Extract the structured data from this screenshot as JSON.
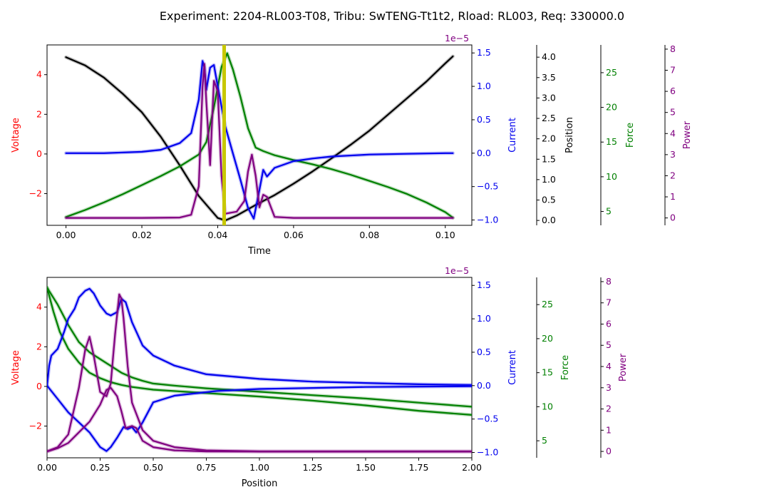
{
  "title": "Experiment: 2204-RL003-T08, Tribu: SwTENG-Tt1t2, Rload: RL003, Req: 330000.0",
  "colors": {
    "voltage": "#ff0000",
    "current": "#0000ee",
    "position": "#000000",
    "force": "#008000",
    "power": "#800080",
    "marker": "#c8c800"
  },
  "chart_data": [
    {
      "type": "line",
      "xlabel": "Time",
      "xlim": [
        -0.005,
        0.107
      ],
      "xticks": [
        "0.00",
        "0.02",
        "0.04",
        "0.06",
        "0.08",
        "0.10"
      ],
      "vertical_marker_x": 0.0417,
      "axes": {
        "voltage": {
          "label": "Voltage",
          "ylim": [
            -3.6,
            5.5
          ],
          "ticks": [
            "−2",
            "0",
            "2",
            "4"
          ],
          "tick_values": [
            -2,
            0,
            2,
            4
          ]
        },
        "current": {
          "label": "Current",
          "ylim": [
            -1.08,
            1.62
          ],
          "ticks": [
            "−1.0",
            "−0.5",
            "0.0",
            "0.5",
            "1.0",
            "1.5"
          ],
          "tick_values": [
            -1.0,
            -0.5,
            0.0,
            0.5,
            1.0,
            1.5
          ],
          "offset": "1e−5"
        },
        "position": {
          "label": "Position",
          "ylim": [
            -0.12,
            4.3
          ],
          "ticks": [
            "0.0",
            "0.5",
            "1.0",
            "1.5",
            "2.0",
            "2.5",
            "3.0",
            "3.5",
            "4.0"
          ],
          "tick_values": [
            0,
            0.5,
            1,
            1.5,
            2,
            2.5,
            3,
            3.5,
            4
          ]
        },
        "force": {
          "label": "Force",
          "ylim": [
            3.0,
            29.0
          ],
          "ticks": [
            "5",
            "10",
            "15",
            "20",
            "25"
          ],
          "tick_values": [
            5,
            10,
            15,
            20,
            25
          ]
        },
        "power": {
          "label": "Power",
          "ylim": [
            -0.35,
            8.2
          ],
          "ticks": [
            "0",
            "1",
            "2",
            "3",
            "4",
            "5",
            "6",
            "7",
            "8"
          ],
          "tick_values": [
            0,
            1,
            2,
            3,
            4,
            5,
            6,
            7,
            8
          ]
        }
      },
      "series": [
        {
          "key": "position",
          "x": [
            0,
            0.005,
            0.01,
            0.015,
            0.02,
            0.025,
            0.03,
            0.035,
            0.04,
            0.042,
            0.045,
            0.05,
            0.055,
            0.06,
            0.065,
            0.07,
            0.075,
            0.08,
            0.085,
            0.09,
            0.095,
            0.1,
            0.102
          ],
          "y": [
            4.0,
            3.8,
            3.5,
            3.1,
            2.65,
            2.05,
            1.35,
            0.6,
            0.06,
            0.0,
            0.12,
            0.38,
            0.62,
            0.9,
            1.2,
            1.52,
            1.85,
            2.2,
            2.6,
            3.0,
            3.4,
            3.85,
            4.02
          ]
        },
        {
          "key": "force",
          "x": [
            0,
            0.005,
            0.01,
            0.015,
            0.02,
            0.025,
            0.03,
            0.035,
            0.037,
            0.039,
            0.041,
            0.0425,
            0.044,
            0.046,
            0.048,
            0.05,
            0.052,
            0.055,
            0.06,
            0.065,
            0.07,
            0.075,
            0.08,
            0.085,
            0.09,
            0.095,
            0.1,
            0.102
          ],
          "y": [
            4.2,
            5.2,
            6.3,
            7.5,
            8.8,
            10.1,
            11.5,
            13.2,
            15.0,
            20.0,
            25.8,
            27.8,
            25.5,
            21.5,
            17.0,
            14.2,
            13.7,
            13.1,
            12.4,
            11.8,
            11.1,
            10.3,
            9.4,
            8.5,
            7.5,
            6.3,
            4.9,
            4.1
          ]
        },
        {
          "key": "current",
          "x": [
            0,
            0.01,
            0.02,
            0.025,
            0.03,
            0.033,
            0.035,
            0.036,
            0.0365,
            0.037,
            0.038,
            0.039,
            0.04,
            0.042,
            0.044,
            0.046,
            0.048,
            0.0495,
            0.051,
            0.052,
            0.053,
            0.055,
            0.06,
            0.065,
            0.07,
            0.08,
            0.09,
            0.1,
            0.102
          ],
          "y": [
            0.0,
            0.0,
            0.02,
            0.05,
            0.15,
            0.3,
            0.8,
            1.38,
            1.28,
            0.95,
            1.28,
            1.32,
            1.0,
            0.4,
            0.0,
            -0.4,
            -0.82,
            -0.98,
            -0.55,
            -0.25,
            -0.35,
            -0.22,
            -0.12,
            -0.08,
            -0.05,
            -0.02,
            -0.01,
            0.0,
            0.0
          ]
        },
        {
          "key": "power",
          "x": [
            0,
            0.01,
            0.02,
            0.03,
            0.033,
            0.035,
            0.036,
            0.0365,
            0.037,
            0.038,
            0.039,
            0.04,
            0.041,
            0.042,
            0.045,
            0.047,
            0.048,
            0.049,
            0.05,
            0.051,
            0.052,
            0.053,
            0.055,
            0.06,
            0.08,
            0.102
          ],
          "y": [
            0,
            0,
            0,
            0.02,
            0.15,
            1.5,
            6.2,
            7.3,
            5.5,
            2.5,
            6.5,
            6.0,
            2.0,
            0.2,
            0.3,
            0.8,
            2.2,
            3.0,
            2.0,
            0.5,
            1.1,
            1.0,
            0.05,
            0,
            0,
            0
          ]
        }
      ]
    },
    {
      "type": "line",
      "xlabel": "Position",
      "xlim": [
        0.0,
        2.0
      ],
      "xticks": [
        "0.00",
        "0.25",
        "0.50",
        "0.75",
        "1.00",
        "1.25",
        "1.50",
        "1.75",
        "2.00"
      ],
      "axes": {
        "voltage": {
          "label": "Voltage",
          "ylim": [
            -3.6,
            5.5
          ],
          "ticks": [
            "−2",
            "0",
            "2",
            "4"
          ],
          "tick_values": [
            -2,
            0,
            2,
            4
          ]
        },
        "current": {
          "label": "Current",
          "ylim": [
            -1.08,
            1.62
          ],
          "ticks": [
            "−1.0",
            "−0.5",
            "0.0",
            "0.5",
            "1.0",
            "1.5"
          ],
          "tick_values": [
            -1.0,
            -0.5,
            0.0,
            0.5,
            1.0,
            1.5
          ],
          "offset": "1e−5"
        },
        "force": {
          "label": "Force",
          "ylim": [
            2.5,
            29.0
          ],
          "ticks": [
            "5",
            "10",
            "15",
            "20",
            "25"
          ],
          "tick_values": [
            5,
            10,
            15,
            20,
            25
          ]
        },
        "power": {
          "label": "Power",
          "ylim": [
            -0.3,
            8.2
          ],
          "ticks": [
            "0",
            "1",
            "2",
            "3",
            "4",
            "5",
            "6",
            "7",
            "8"
          ],
          "tick_values": [
            0,
            1,
            2,
            3,
            4,
            5,
            6,
            7,
            8
          ]
        }
      },
      "series": [
        {
          "key": "force",
          "x": [
            0,
            0.05,
            0.1,
            0.15,
            0.2,
            0.25,
            0.3,
            0.35,
            0.4,
            0.45,
            0.5,
            0.6,
            0.75,
            1.0,
            1.25,
            1.5,
            1.75,
            2.0
          ],
          "y": [
            27.5,
            25.0,
            22.0,
            19.5,
            18.0,
            17.0,
            16.0,
            15.0,
            14.3,
            13.8,
            13.4,
            13.1,
            12.7,
            12.2,
            11.7,
            11.2,
            10.6,
            10.0
          ]
        },
        {
          "key": "force",
          "x": [
            0,
            0.03,
            0.06,
            0.1,
            0.15,
            0.2,
            0.25,
            0.3,
            0.35,
            0.4,
            0.5,
            0.75,
            1.0,
            1.25,
            1.5,
            1.75,
            2.0
          ],
          "y": [
            27.5,
            24.0,
            21.0,
            18.5,
            16.5,
            15.0,
            14.2,
            13.6,
            13.2,
            12.9,
            12.5,
            12.0,
            11.5,
            10.9,
            10.2,
            9.4,
            8.8
          ]
        },
        {
          "key": "current",
          "x": [
            0,
            0.01,
            0.02,
            0.05,
            0.08,
            0.1,
            0.13,
            0.15,
            0.18,
            0.2,
            0.22,
            0.25,
            0.28,
            0.3,
            0.33,
            0.35,
            0.37,
            0.4,
            0.45,
            0.5,
            0.6,
            0.75,
            1.0,
            1.25,
            1.5,
            1.75,
            2.0
          ],
          "y": [
            0.0,
            0.3,
            0.45,
            0.55,
            0.8,
            1.0,
            1.15,
            1.32,
            1.42,
            1.45,
            1.38,
            1.2,
            1.08,
            1.05,
            1.1,
            1.3,
            1.25,
            0.95,
            0.6,
            0.45,
            0.3,
            0.17,
            0.1,
            0.06,
            0.04,
            0.02,
            0.01
          ]
        },
        {
          "key": "current",
          "x": [
            0,
            0.05,
            0.1,
            0.15,
            0.2,
            0.25,
            0.28,
            0.3,
            0.33,
            0.36,
            0.38,
            0.4,
            0.42,
            0.45,
            0.5,
            0.55,
            0.6,
            0.8,
            1.0,
            1.5,
            2.0
          ],
          "y": [
            0.0,
            -0.2,
            -0.4,
            -0.55,
            -0.7,
            -0.92,
            -0.98,
            -0.92,
            -0.78,
            -0.62,
            -0.65,
            -0.62,
            -0.7,
            -0.55,
            -0.25,
            -0.2,
            -0.15,
            -0.08,
            -0.05,
            -0.02,
            -0.01
          ]
        },
        {
          "key": "power",
          "x": [
            0,
            0.05,
            0.1,
            0.15,
            0.18,
            0.2,
            0.22,
            0.25,
            0.28,
            0.3,
            0.32,
            0.34,
            0.35,
            0.36,
            0.38,
            0.4,
            0.45,
            0.5,
            0.6,
            0.75,
            1.0,
            1.5,
            2.0
          ],
          "y": [
            0.0,
            0.2,
            0.8,
            3.0,
            4.8,
            5.4,
            4.5,
            2.8,
            2.6,
            3.2,
            5.5,
            7.4,
            7.2,
            6.3,
            4.0,
            2.3,
            1.0,
            0.5,
            0.2,
            0.05,
            0.0,
            0.0,
            0.0
          ]
        },
        {
          "key": "power",
          "x": [
            0,
            0.05,
            0.1,
            0.15,
            0.2,
            0.25,
            0.28,
            0.3,
            0.33,
            0.35,
            0.37,
            0.4,
            0.42,
            0.45,
            0.5,
            0.6,
            0.75,
            1.0,
            1.5,
            2.0
          ],
          "y": [
            0.0,
            0.15,
            0.4,
            0.9,
            1.4,
            2.2,
            2.9,
            3.0,
            2.6,
            1.9,
            1.1,
            1.2,
            1.1,
            0.5,
            0.2,
            0.05,
            0.0,
            0.0,
            0.0,
            0.0
          ]
        }
      ]
    }
  ]
}
